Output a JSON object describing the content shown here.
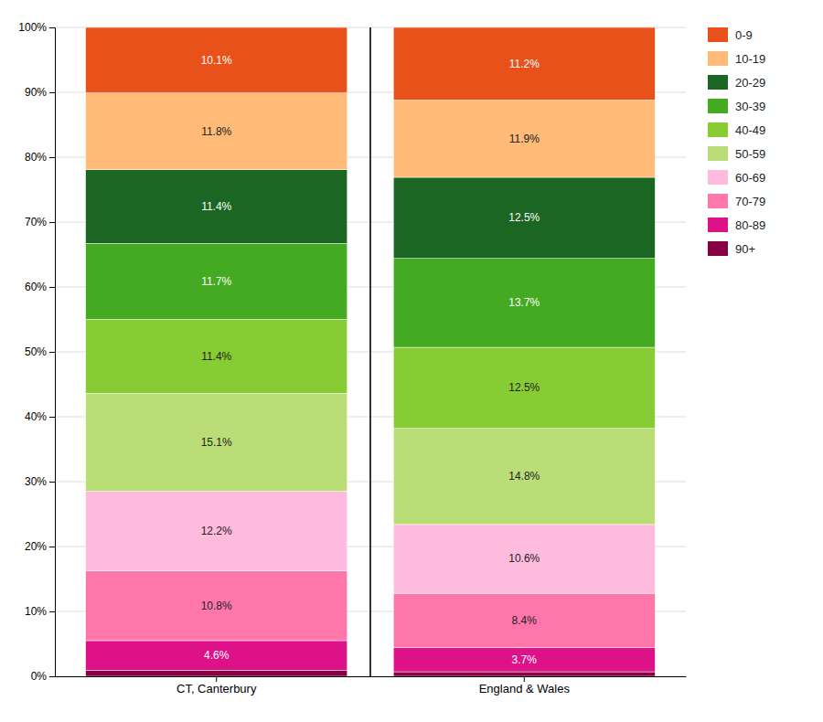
{
  "chart_data": {
    "type": "bar",
    "stacked": true,
    "grid": true,
    "legend": "right",
    "data_labels": true,
    "categories": [
      "CT, Canterbury",
      "England & Wales"
    ],
    "ylim": [
      0,
      100
    ],
    "yticks": [
      {
        "value": 0,
        "label": "0%"
      },
      {
        "value": 10,
        "label": "10%"
      },
      {
        "value": 20,
        "label": "20%"
      },
      {
        "value": 30,
        "label": "30%"
      },
      {
        "value": 40,
        "label": "40%"
      },
      {
        "value": 50,
        "label": "50%"
      },
      {
        "value": 60,
        "label": "60%"
      },
      {
        "value": 70,
        "label": "70%"
      },
      {
        "value": 80,
        "label": "80%"
      },
      {
        "value": 90,
        "label": "90%"
      },
      {
        "value": 100,
        "label": "100%"
      }
    ],
    "series": [
      {
        "name": "90+",
        "color": "#880044",
        "values": [
          0.9,
          0.7
        ],
        "data_labels": false
      },
      {
        "name": "80-89",
        "color": "#DD1188",
        "values": [
          4.6,
          3.7
        ],
        "value_labels": [
          "4.6%",
          "3.7%"
        ]
      },
      {
        "name": "70-79",
        "color": "#FF77AA",
        "values": [
          10.8,
          8.4
        ],
        "value_labels": [
          "10.8%",
          "8.4%"
        ]
      },
      {
        "name": "60-69",
        "color": "#FFBBDD",
        "values": [
          12.2,
          10.6
        ],
        "value_labels": [
          "12.2%",
          "10.6%"
        ]
      },
      {
        "name": "50-59",
        "color": "#BBDD77",
        "values": [
          15.1,
          14.8
        ],
        "value_labels": [
          "15.1%",
          "14.8%"
        ]
      },
      {
        "name": "40-49",
        "color": "#88CC33",
        "values": [
          11.4,
          12.5
        ],
        "value_labels": [
          "11.4%",
          "12.5%"
        ]
      },
      {
        "name": "30-39",
        "color": "#44AA22",
        "values": [
          11.7,
          13.7
        ],
        "value_labels": [
          "11.7%",
          "13.7%"
        ]
      },
      {
        "name": "20-29",
        "color": "#1A6622",
        "values": [
          11.4,
          12.5
        ],
        "value_labels": [
          "11.4%",
          "12.5%"
        ]
      },
      {
        "name": "10-19",
        "color": "#FFBB77",
        "values": [
          11.8,
          11.9
        ],
        "value_labels": [
          "11.8%",
          "11.9%"
        ]
      },
      {
        "name": "0-9",
        "color": "#E8521A",
        "values": [
          10.1,
          11.2
        ],
        "value_labels": [
          "10.1%",
          "11.2%"
        ]
      }
    ]
  }
}
